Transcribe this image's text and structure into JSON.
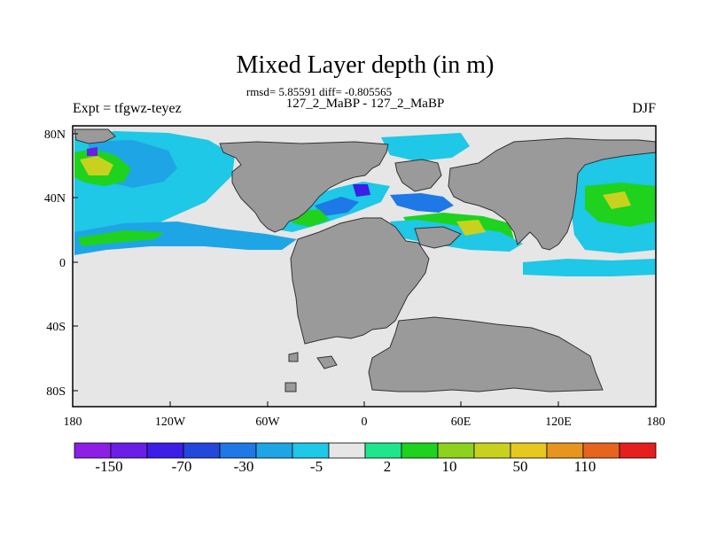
{
  "title": "Mixed Layer depth (in m)",
  "stats": "rmsd= 5.85591 diff= -0.805565",
  "subtitle": "127_2_MaBP - 127_2_MaBP",
  "left_label": "Expt = tfgwz-teyez",
  "right_label": "DJF",
  "y_ticks": [
    "80N",
    "40N",
    "0",
    "40S",
    "80S"
  ],
  "x_ticks": [
    "180",
    "120W",
    "60W",
    "0",
    "60E",
    "120E",
    "180"
  ],
  "colorbar": {
    "colors": [
      "#8c1ee6",
      "#6a1ee6",
      "#3c1ee6",
      "#2346dc",
      "#1e78e6",
      "#1ea5e6",
      "#1ec8e6",
      "#e6e6e6",
      "#1ee68c",
      "#1ed21e",
      "#8cd21e",
      "#c8d21e",
      "#e6c81e",
      "#e6961e",
      "#e6641e",
      "#e61e1e"
    ],
    "labels": [
      "-150",
      "-70",
      "-30",
      "-5",
      "2",
      "10",
      "50",
      "110"
    ]
  },
  "map_colors": {
    "ocean": "#e6e6e6",
    "land": "#9a9a9a"
  }
}
